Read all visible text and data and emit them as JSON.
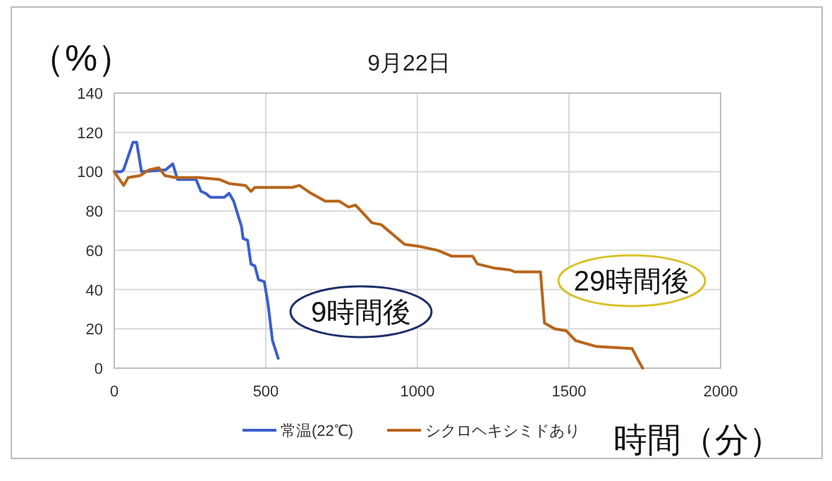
{
  "chart_data": {
    "type": "line",
    "title": "9月22日",
    "ylabel": "（%）",
    "xlabel": "時間（分）",
    "xlim": [
      0,
      2000
    ],
    "xticks": [
      0,
      500,
      1000,
      1500,
      2000
    ],
    "ylim": [
      0,
      140
    ],
    "yticks": [
      0,
      20,
      40,
      60,
      80,
      100,
      120,
      140
    ],
    "grid": true,
    "legend": "bottom",
    "marker": "none",
    "line_style": "solid",
    "annotations": [
      "9時間後",
      "29時間後"
    ],
    "series": [
      {
        "name": "常温(22℃)",
        "color": "#3a5fcd",
        "x": [
          0,
          23,
          31,
          62,
          74,
          90,
          170,
          193,
          209,
          270,
          286,
          301,
          317,
          363,
          379,
          394,
          420,
          425,
          440,
          451,
          464,
          476,
          495,
          507,
          522,
          541
        ],
        "values": [
          100,
          100,
          101,
          115,
          115,
          100,
          101,
          104,
          96,
          96,
          90,
          89,
          87,
          87,
          89,
          85,
          72,
          66,
          65,
          53,
          52,
          45,
          44,
          33,
          14,
          5
        ]
      },
      {
        "name": "シクロヘキシミドあり",
        "color": "#b8651b",
        "x": [
          0,
          31,
          46,
          85,
          116,
          147,
          167,
          201,
          278,
          348,
          379,
          433,
          451,
          464,
          495,
          587,
          611,
          649,
          696,
          742,
          773,
          796,
          850,
          881,
          927,
          958,
          1005,
          1066,
          1113,
          1182,
          1198,
          1252,
          1306,
          1321,
          1406,
          1419,
          1453,
          1491,
          1522,
          1591,
          1708,
          1723,
          1743
        ],
        "values": [
          100,
          93,
          97,
          98,
          101,
          102,
          98,
          97,
          97,
          96,
          94,
          93,
          90,
          92,
          92,
          92,
          93,
          89,
          85,
          85,
          82,
          83,
          74,
          73,
          67,
          63,
          62,
          60,
          57,
          57,
          53,
          51,
          50,
          49,
          49,
          23,
          20,
          19,
          14,
          11,
          10,
          5.5,
          0
        ]
      }
    ]
  }
}
